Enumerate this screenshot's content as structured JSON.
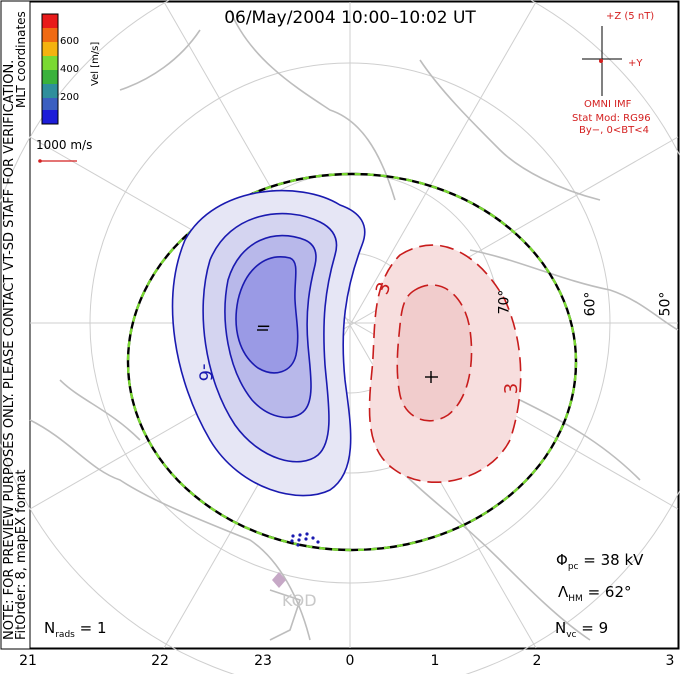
{
  "title": "06/May/2004  10:00–10:02 UT",
  "note": {
    "line1": "NOTE: FOR PREVIEW PURPOSES ONLY. PLEASE CONTACT VT-SD STAFF FOR VERIFICATION.",
    "line2": "FitOrder: 8, mapEX format",
    "coords": "MLT coordinates"
  },
  "colorbar": {
    "label": "Vel [m/s]",
    "ticks": [
      "600",
      "400",
      "200"
    ],
    "colors": [
      "#e81b1b",
      "#f06a12",
      "#f5b30f",
      "#7ad932",
      "#3ab23c",
      "#2f8f9c",
      "#3a5fc0",
      "#1d1dd8"
    ]
  },
  "vector_scale": {
    "label": "1000 m/s"
  },
  "imf": {
    "z_label": "+Z (5 nT)",
    "y_label": "+Y",
    "source": "OMNI IMF",
    "stat_mod": "Stat Mod: RG96",
    "condition": "By−, 0<BT<4"
  },
  "mlt_ticks": [
    "21",
    "22",
    "23",
    "0",
    "1",
    "2",
    "3"
  ],
  "lat_labels": [
    "70°",
    "60°",
    "50°"
  ],
  "contours": {
    "dusk": {
      "sign": "−",
      "label": "-6",
      "color": "#1a1ab0"
    },
    "dawn": {
      "sign": "+",
      "label1": "3",
      "label2": "3",
      "color": "#c81c1c"
    }
  },
  "station": "KOD",
  "stats": {
    "phi_pc": "= 38 kV",
    "lambda_hm": "= 62°",
    "n_vc": "= 9",
    "n_rads": "= 1"
  }
}
